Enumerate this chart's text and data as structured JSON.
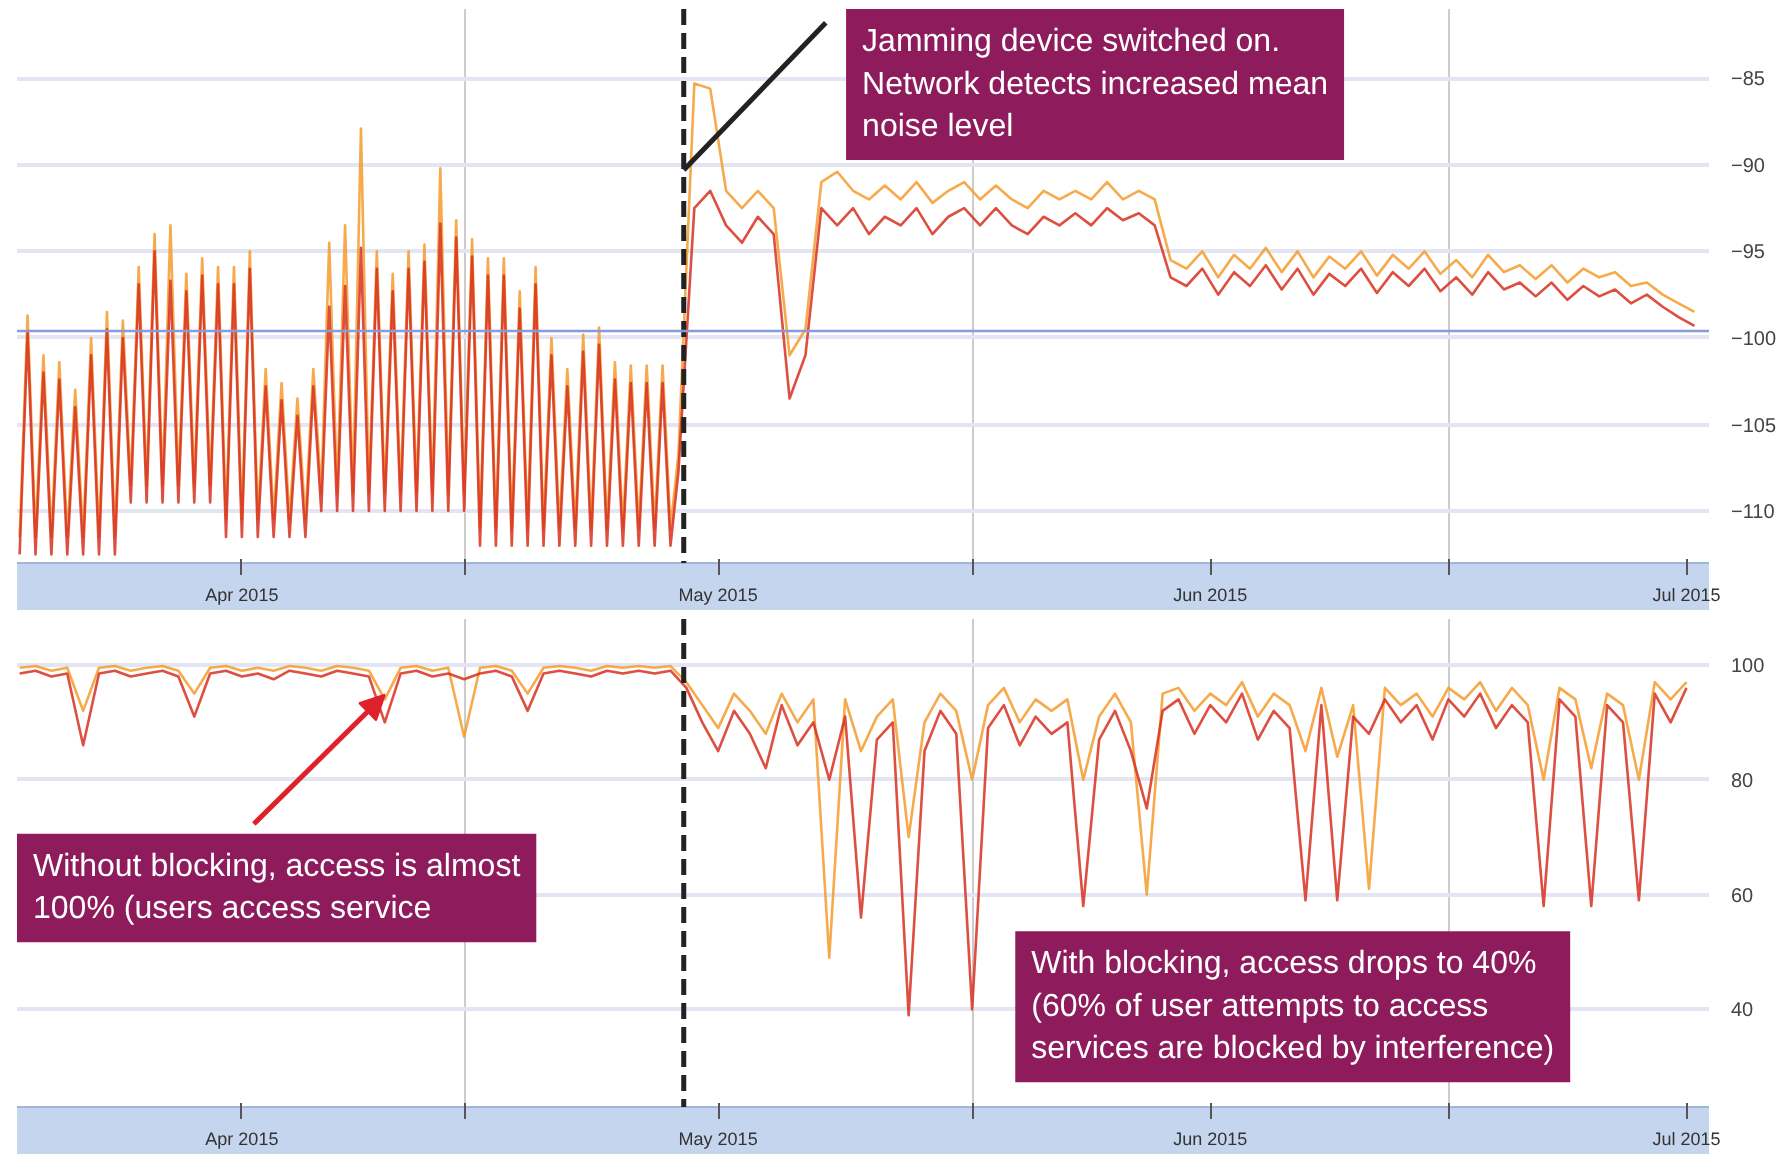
{
  "chart_data": [
    {
      "type": "line",
      "x": [
        "2015-03-20T00:00",
        "2015-03-20T12:00",
        "2015-03-21T00:00",
        "2015-03-21T12:00",
        "2015-03-22T00:00",
        "2015-03-22T12:00",
        "2015-03-23T00:00",
        "2015-03-23T12:00",
        "2015-03-24T00:00",
        "2015-03-24T12:00",
        "2015-03-25T00:00",
        "2015-03-25T12:00",
        "2015-03-26T00:00",
        "2015-03-26T12:00",
        "2015-03-27T00:00",
        "2015-03-27T12:00",
        "2015-03-28T00:00",
        "2015-03-28T12:00",
        "2015-03-29T00:00",
        "2015-03-29T12:00",
        "2015-03-30T00:00",
        "2015-03-30T12:00",
        "2015-03-31T00:00",
        "2015-03-31T12:00",
        "2015-04-01T00:00",
        "2015-04-01T12:00",
        "2015-04-02T00:00",
        "2015-04-02T12:00",
        "2015-04-03T00:00",
        "2015-04-03T12:00",
        "2015-04-04T00:00",
        "2015-04-04T12:00",
        "2015-04-05T00:00",
        "2015-04-05T12:00",
        "2015-04-06T00:00",
        "2015-04-06T12:00",
        "2015-04-07T00:00",
        "2015-04-07T12:00",
        "2015-04-08T00:00",
        "2015-04-08T12:00",
        "2015-04-09T00:00",
        "2015-04-09T12:00",
        "2015-04-10T00:00",
        "2015-04-10T12:00",
        "2015-04-11T00:00",
        "2015-04-11T12:00",
        "2015-04-12T00:00",
        "2015-04-12T12:00",
        "2015-04-13T00:00",
        "2015-04-13T12:00",
        "2015-04-14T00:00",
        "2015-04-14T12:00",
        "2015-04-15T00:00",
        "2015-04-15T12:00",
        "2015-04-16T00:00",
        "2015-04-16T12:00",
        "2015-04-17T00:00",
        "2015-04-17T12:00",
        "2015-04-18T00:00",
        "2015-04-18T12:00",
        "2015-04-19T00:00",
        "2015-04-19T12:00",
        "2015-04-20T00:00",
        "2015-04-20T12:00",
        "2015-04-21T00:00",
        "2015-04-21T12:00",
        "2015-04-22T00:00",
        "2015-04-22T12:00",
        "2015-04-23T00:00",
        "2015-04-23T12:00",
        "2015-04-24T00:00",
        "2015-04-24T12:00",
        "2015-04-25T00:00",
        "2015-04-25T12:00",
        "2015-04-26T00:00",
        "2015-04-26T12:00",
        "2015-04-27T00:00",
        "2015-04-27T12:00",
        "2015-04-28T00:00",
        "2015-04-28T12:00",
        "2015-04-29T00:00",
        "2015-04-29T12:00",
        "2015-04-30T00:00",
        "2015-04-30T12:00",
        "2015-05-01T12:00",
        "2015-05-02T12:00",
        "2015-05-03T12:00",
        "2015-05-04T12:00",
        "2015-05-05T12:00",
        "2015-05-06T12:00",
        "2015-05-07T12:00",
        "2015-05-08T12:00",
        "2015-05-09T12:00",
        "2015-05-10T12:00",
        "2015-05-11T12:00",
        "2015-05-12T12:00",
        "2015-05-13T12:00",
        "2015-05-14T12:00",
        "2015-05-15T12:00",
        "2015-05-16T12:00",
        "2015-05-17T12:00",
        "2015-05-18T12:00",
        "2015-05-19T12:00",
        "2015-05-20T12:00",
        "2015-05-21T12:00",
        "2015-05-22T12:00",
        "2015-05-23T12:00",
        "2015-05-24T12:00",
        "2015-05-25T12:00",
        "2015-05-26T12:00",
        "2015-05-27T12:00",
        "2015-05-28T12:00",
        "2015-05-29T12:00",
        "2015-05-30T12:00",
        "2015-05-31T12:00",
        "2015-06-01T12:00",
        "2015-06-02T12:00",
        "2015-06-03T12:00",
        "2015-06-04T12:00",
        "2015-06-05T12:00",
        "2015-06-06T12:00",
        "2015-06-07T12:00",
        "2015-06-08T12:00",
        "2015-06-09T12:00",
        "2015-06-10T12:00",
        "2015-06-11T12:00",
        "2015-06-12T12:00",
        "2015-06-13T12:00",
        "2015-06-14T12:00",
        "2015-06-15T12:00",
        "2015-06-16T12:00",
        "2015-06-17T12:00",
        "2015-06-18T12:00",
        "2015-06-19T12:00",
        "2015-06-20T12:00",
        "2015-06-21T12:00",
        "2015-06-22T12:00",
        "2015-06-23T12:00",
        "2015-06-24T12:00",
        "2015-06-25T12:00",
        "2015-06-26T12:00",
        "2015-06-27T12:00",
        "2015-06-28T12:00",
        "2015-06-29T12:00",
        "2015-06-30T12:00",
        "2015-07-01T12:00",
        "2015-07-02T12:00",
        "2015-07-03T12:00"
      ],
      "series": [
        {
          "color": "#f59b2c",
          "values": [
            -111.5,
            -98.7,
            -111.5,
            -101,
            -111.5,
            -101.4,
            -111.5,
            -103,
            -111.5,
            -100,
            -111.5,
            -98.5,
            -111.5,
            -99,
            -108.5,
            -95.9,
            -108.5,
            -94,
            -108.5,
            -93.5,
            -108.5,
            -96.3,
            -108.5,
            -95.4,
            -108.5,
            -95.9,
            -110.5,
            -95.9,
            -110.5,
            -95,
            -110.5,
            -101.8,
            -110.5,
            -102.6,
            -110.5,
            -103.5,
            -110.5,
            -101.8,
            -109,
            -94.5,
            -109,
            -93.5,
            -109,
            -87.9,
            -109,
            -95,
            -109,
            -96.3,
            -109,
            -95,
            -109,
            -94.6,
            -109,
            -90.2,
            -109,
            -93.2,
            -109,
            -94.3,
            -111,
            -95.4,
            -111,
            -95.4,
            -111,
            -97.3,
            -111,
            -95.9,
            -111,
            -100,
            -111,
            -101.8,
            -111,
            -99.8,
            -111,
            -99.4,
            -111,
            -101.4,
            -111,
            -101.6,
            -111,
            -101.6,
            -111,
            -101.6,
            -111,
            -106.7,
            -85.3,
            -85.6,
            -91.5,
            -92.5,
            -91.5,
            -92.5,
            -101,
            -99.5,
            -91,
            -90.4,
            -91.5,
            -92,
            -91.2,
            -92,
            -91,
            -92.2,
            -91.5,
            -91,
            -92,
            -91.2,
            -92,
            -92.5,
            -91.5,
            -92,
            -91.5,
            -92,
            -91,
            -92,
            -91.5,
            -92,
            -95.5,
            -96,
            -95,
            -96.5,
            -95.2,
            -96,
            -94.8,
            -96.2,
            -95,
            -96.5,
            -95.3,
            -96,
            -95,
            -96.4,
            -95.2,
            -96,
            -95,
            -96.3,
            -95.5,
            -96.5,
            -95.2,
            -96.2,
            -95.8,
            -96.6,
            -95.8,
            -96.8,
            -96,
            -96.5,
            -96.2,
            -97,
            -96.8,
            -97.5,
            -98,
            -98.5
          ]
        },
        {
          "color": "#d7301f",
          "values": [
            -112.5,
            -99.7,
            -112.5,
            -102,
            -112.5,
            -102.4,
            -112.5,
            -104,
            -112.5,
            -101,
            -112.5,
            -99.5,
            -112.5,
            -100,
            -109.5,
            -96.9,
            -109.5,
            -95,
            -109.5,
            -96.7,
            -109.5,
            -97.3,
            -109.5,
            -96.4,
            -109.5,
            -96.9,
            -111.5,
            -96.9,
            -111.5,
            -96,
            -111.5,
            -102.8,
            -111.5,
            -103.6,
            -111.5,
            -104.5,
            -111.5,
            -102.8,
            -110,
            -98.2,
            -110,
            -97,
            -110,
            -94.8,
            -110,
            -96,
            -110,
            -97.3,
            -110,
            -96,
            -110,
            -95.6,
            -110,
            -93.4,
            -110,
            -94.2,
            -110,
            -95.3,
            -112,
            -96.4,
            -112,
            -96.4,
            -112,
            -98.3,
            -112,
            -96.9,
            -112,
            -101,
            -112,
            -102.8,
            -112,
            -100.8,
            -112,
            -100.4,
            -112,
            -102.4,
            -112,
            -102.6,
            -112,
            -102.6,
            -112,
            -102.6,
            -112,
            -107.7,
            -92.5,
            -91.5,
            -93.5,
            -94.5,
            -93,
            -94,
            -103.5,
            -101,
            -92.5,
            -93.5,
            -92.5,
            -94,
            -93,
            -93.5,
            -92.5,
            -94,
            -93,
            -92.5,
            -93.5,
            -92.5,
            -93.5,
            -94,
            -93,
            -93.5,
            -92.8,
            -93.5,
            -92.5,
            -93.2,
            -92.8,
            -93.5,
            -96.5,
            -97,
            -96,
            -97.5,
            -96.2,
            -97,
            -95.8,
            -97.2,
            -96,
            -97.5,
            -96.3,
            -97,
            -96,
            -97.4,
            -96.2,
            -97,
            -96,
            -97.3,
            -96.5,
            -97.5,
            -96.2,
            -97.2,
            -96.8,
            -97.6,
            -96.8,
            -97.8,
            -97,
            -97.6,
            -97.2,
            -98,
            -97.5,
            -98.2,
            -98.8,
            -99.3
          ]
        }
      ],
      "xlim": [
        "2015-03-19T20:00",
        "2015-07-04T10:00"
      ],
      "xticks": [
        {
          "value": "2015-04-03",
          "label": "Apr 2015"
        },
        {
          "value": "2015-04-17",
          "label": null
        },
        {
          "value": "2015-05-03",
          "label": "May 2015"
        },
        {
          "value": "2015-05-19",
          "label": null
        },
        {
          "value": "2015-06-03",
          "label": "Jun 2015"
        },
        {
          "value": "2015-06-18",
          "label": null
        },
        {
          "value": "2015-07-03",
          "label": "Jul 2015"
        }
      ],
      "ylim": [
        -113,
        -81
      ],
      "yticks": [
        -110,
        -105,
        -100,
        -95,
        -90,
        -85
      ],
      "grid": true,
      "ref_lines": [
        {
          "axis": "x",
          "value": "2015-04-30T20:00",
          "color": "#222222",
          "line_style": "dashed"
        },
        {
          "axis": "y",
          "value": -99.6,
          "color": "#8a9ad8"
        }
      ],
      "annotations": [
        {
          "text": "Jamming device switched on. Network detects increased mean noise level",
          "x": "2015-04-30T20:00",
          "y": -90.3
        }
      ]
    },
    {
      "type": "line",
      "x": [
        "2015-03-20",
        "2015-03-21",
        "2015-03-22",
        "2015-03-23",
        "2015-03-24",
        "2015-03-25",
        "2015-03-26",
        "2015-03-27",
        "2015-03-28",
        "2015-03-29",
        "2015-03-30",
        "2015-03-31",
        "2015-04-01",
        "2015-04-02",
        "2015-04-03",
        "2015-04-04",
        "2015-04-05",
        "2015-04-06",
        "2015-04-07",
        "2015-04-08",
        "2015-04-09",
        "2015-04-10",
        "2015-04-11",
        "2015-04-12",
        "2015-04-13",
        "2015-04-14",
        "2015-04-15",
        "2015-04-16",
        "2015-04-17",
        "2015-04-18",
        "2015-04-19",
        "2015-04-20",
        "2015-04-21",
        "2015-04-22",
        "2015-04-23",
        "2015-04-24",
        "2015-04-25",
        "2015-04-26",
        "2015-04-27",
        "2015-04-28",
        "2015-04-29",
        "2015-04-30",
        "2015-05-01",
        "2015-05-02",
        "2015-05-03",
        "2015-05-04",
        "2015-05-05",
        "2015-05-06",
        "2015-05-07",
        "2015-05-08",
        "2015-05-09",
        "2015-05-10",
        "2015-05-11",
        "2015-05-12",
        "2015-05-13",
        "2015-05-14",
        "2015-05-15",
        "2015-05-16",
        "2015-05-17",
        "2015-05-18",
        "2015-05-19",
        "2015-05-20",
        "2015-05-21",
        "2015-05-22",
        "2015-05-23",
        "2015-05-24",
        "2015-05-25",
        "2015-05-26",
        "2015-05-27",
        "2015-05-28",
        "2015-05-29",
        "2015-05-30",
        "2015-05-31",
        "2015-06-01",
        "2015-06-02",
        "2015-06-03",
        "2015-06-04",
        "2015-06-05",
        "2015-06-06",
        "2015-06-07",
        "2015-06-08",
        "2015-06-09",
        "2015-06-10",
        "2015-06-11",
        "2015-06-12",
        "2015-06-13",
        "2015-06-14",
        "2015-06-15",
        "2015-06-16",
        "2015-06-17",
        "2015-06-18",
        "2015-06-19",
        "2015-06-20",
        "2015-06-21",
        "2015-06-22",
        "2015-06-23",
        "2015-06-24",
        "2015-06-25",
        "2015-06-26",
        "2015-06-27",
        "2015-06-28",
        "2015-06-29",
        "2015-06-30",
        "2015-07-01",
        "2015-07-02",
        "2015-07-03"
      ],
      "series": [
        {
          "color": "#f59b2c",
          "values": [
            99.5,
            99.8,
            99,
            99.5,
            92,
            99.5,
            99.8,
            99,
            99.5,
            99.8,
            99,
            95,
            99.5,
            99.8,
            99,
            99.5,
            99,
            99.8,
            99.5,
            99,
            99.8,
            99.5,
            99,
            94,
            99.5,
            99.8,
            99,
            99.5,
            87.5,
            99.5,
            99.8,
            99,
            95,
            99.5,
            99.8,
            99.5,
            99,
            99.8,
            99.5,
            99.8,
            99.5,
            99.8,
            97,
            93,
            89,
            95,
            92,
            88,
            95,
            90,
            94,
            49,
            94,
            85,
            91,
            94,
            70,
            90,
            95,
            92,
            80,
            93,
            96,
            90,
            94,
            92,
            94,
            80,
            91,
            95,
            90,
            60,
            95,
            96,
            92,
            95,
            93,
            97,
            91,
            95,
            93,
            85,
            96,
            84,
            93,
            61,
            96,
            93,
            95,
            91,
            96,
            94,
            97,
            92,
            96,
            93,
            80,
            96,
            94,
            82,
            95,
            93,
            80,
            97,
            94,
            97
          ]
        },
        {
          "color": "#d7301f",
          "values": [
            98.5,
            99,
            98,
            98.5,
            86,
            98.5,
            99,
            98,
            98.5,
            99,
            98,
            91,
            98.5,
            99,
            98,
            98.5,
            97.5,
            99,
            98.5,
            98,
            99,
            98.5,
            98,
            90,
            98.5,
            99,
            98,
            98.5,
            97.5,
            98.5,
            99,
            98,
            92,
            98.5,
            99,
            98.5,
            98,
            99,
            98.5,
            99,
            98.5,
            99,
            96,
            90,
            85,
            92,
            88,
            82,
            93,
            86,
            90,
            80,
            91,
            56,
            87,
            90,
            39,
            85,
            92,
            88,
            40,
            89,
            93,
            86,
            91,
            88,
            90,
            58,
            87,
            92,
            85,
            75,
            92,
            94,
            88,
            93,
            90,
            95,
            87,
            92,
            89,
            59,
            93,
            59,
            91,
            88,
            94,
            90,
            93,
            87,
            94,
            91,
            95,
            89,
            93,
            90,
            58,
            94,
            91,
            58,
            93,
            90,
            59,
            95,
            90,
            96
          ]
        }
      ],
      "xlim": [
        "2015-03-19T20:00",
        "2015-07-04T10:00"
      ],
      "xticks": [
        {
          "value": "2015-04-03",
          "label": "Apr 2015"
        },
        {
          "value": "2015-04-17",
          "label": null
        },
        {
          "value": "2015-05-03",
          "label": "May 2015"
        },
        {
          "value": "2015-05-19",
          "label": null
        },
        {
          "value": "2015-06-03",
          "label": "Jun 2015"
        },
        {
          "value": "2015-06-18",
          "label": null
        },
        {
          "value": "2015-07-03",
          "label": "Jul 2015"
        }
      ],
      "ylim": [
        23,
        108
      ],
      "yticks": [
        40,
        60,
        80,
        100
      ],
      "grid": true,
      "ref_lines": [
        {
          "axis": "x",
          "value": "2015-04-30T20:00",
          "color": "#222222",
          "line_style": "dashed"
        }
      ],
      "annotations": [
        {
          "text": "Without blocking, access is almost 100% (users access service",
          "x": "2015-04-12",
          "y": 94.8
        },
        "With blocking, access drops to 40% (60% of user attempts to access services are blocked by interference)"
      ]
    }
  ]
}
